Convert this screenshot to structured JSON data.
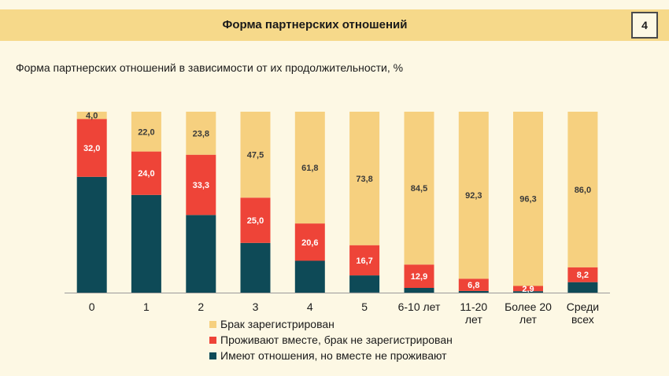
{
  "header": {
    "title": "Форма партнерских отношений",
    "page_number": "4"
  },
  "chart_data": {
    "type": "bar",
    "stacked": true,
    "title": "Форма партнерских отношений в зависимости от их продолжительности, %",
    "categories": [
      "0",
      "1",
      "2",
      "3",
      "4",
      "5",
      "6-10 лет",
      "11-20 лет",
      "Более 20 лет",
      "Среди всех"
    ],
    "category_lines": [
      [
        "0"
      ],
      [
        "1"
      ],
      [
        "2"
      ],
      [
        "3"
      ],
      [
        "4"
      ],
      [
        "5"
      ],
      [
        "6-10 лет"
      ],
      [
        "11-20",
        "лет"
      ],
      [
        "Более 20",
        "лет"
      ],
      [
        "Среди",
        "всех"
      ]
    ],
    "series": [
      {
        "name": "Имеют отношения, но вместе не проживают",
        "color": "#0e4a57",
        "values": [
          64.0,
          54.0,
          42.9,
          27.5,
          17.6,
          9.5,
          2.6,
          0.9,
          0.8,
          5.8
        ],
        "labels": [
          "",
          "",
          "",
          "",
          "",
          "",
          "",
          "",
          "",
          ""
        ]
      },
      {
        "name": "Проживают вместе, брак не зарегистрирован",
        "color": "#ee4438",
        "values": [
          32.0,
          24.0,
          33.3,
          25.0,
          20.6,
          16.7,
          12.9,
          6.8,
          2.9,
          8.2
        ],
        "labels": [
          "32,0",
          "24,0",
          "33,3",
          "25,0",
          "20,6",
          "16,7",
          "12,9",
          "6,8",
          "2,9",
          "8,2"
        ]
      },
      {
        "name": "Брак зарегистрирован",
        "color": "#f6d07f",
        "values": [
          4.0,
          22.0,
          23.8,
          47.5,
          61.8,
          73.8,
          84.5,
          92.3,
          96.3,
          86.0
        ],
        "labels": [
          "4,0",
          "22,0",
          "23,8",
          "47,5",
          "61,8",
          "73,8",
          "84,5",
          "92,3",
          "96,3",
          "86,0"
        ]
      }
    ],
    "legend_order": [
      2,
      1,
      0
    ],
    "ylim": [
      0,
      100
    ],
    "legend_position": "bottom",
    "grid": false
  }
}
